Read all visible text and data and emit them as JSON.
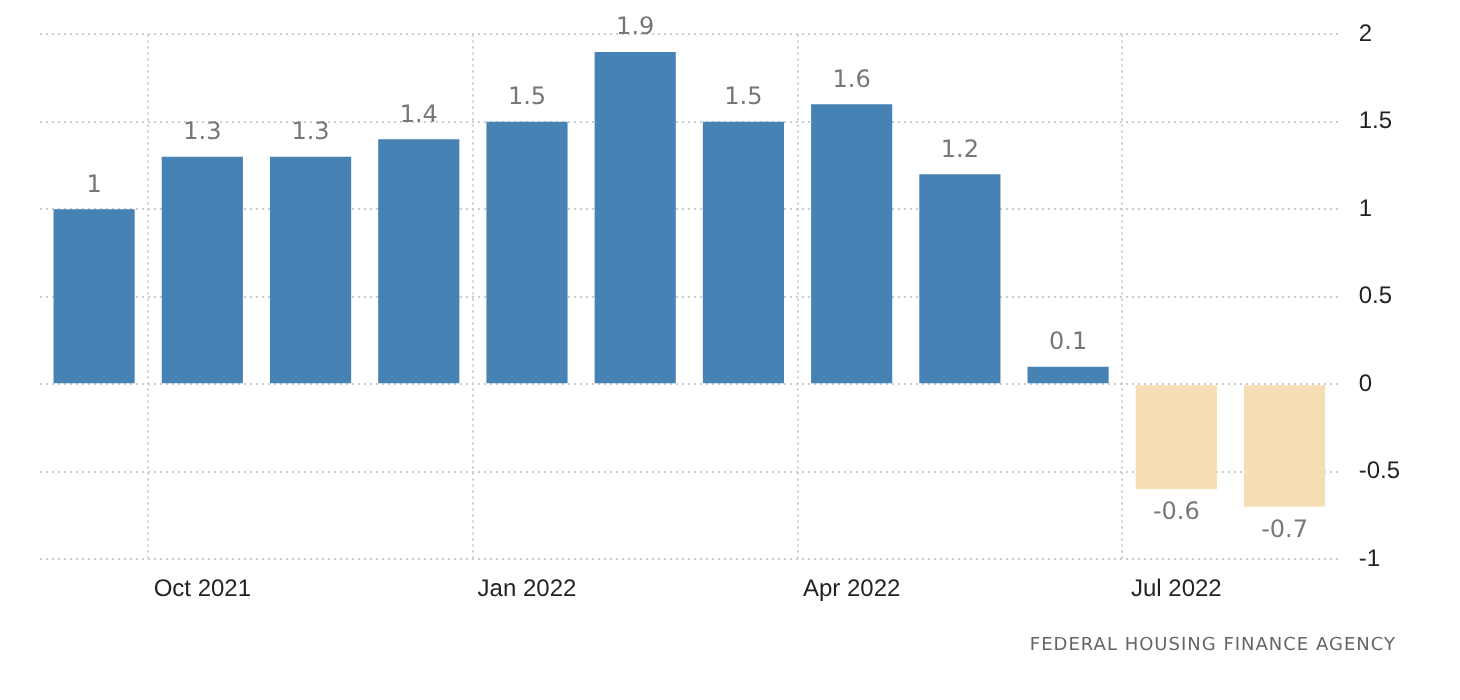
{
  "chart_data": {
    "type": "bar",
    "categories": [
      null,
      "Oct 2021",
      null,
      null,
      "Jan 2022",
      null,
      null,
      "Apr 2022",
      null,
      null,
      "Jul 2022",
      null
    ],
    "values": [
      1,
      1.3,
      1.3,
      1.4,
      1.5,
      1.9,
      1.5,
      1.6,
      1.2,
      0.1,
      -0.6,
      -0.7
    ],
    "colors": [
      "#4682b4",
      "#4682b4",
      "#4682b4",
      "#4682b4",
      "#4682b4",
      "#4682b4",
      "#4682b4",
      "#4682b4",
      "#4682b4",
      "#4682b4",
      "#f5deb3",
      "#f5deb3"
    ],
    "ylim": [
      -1,
      2
    ],
    "yticks": [
      -1,
      -0.5,
      0,
      0.5,
      1,
      1.5,
      2
    ],
    "grid": true,
    "data_labels": true,
    "legend": false,
    "annotations": [
      "FEDERAL HOUSING FINANCE AGENCY"
    ]
  }
}
